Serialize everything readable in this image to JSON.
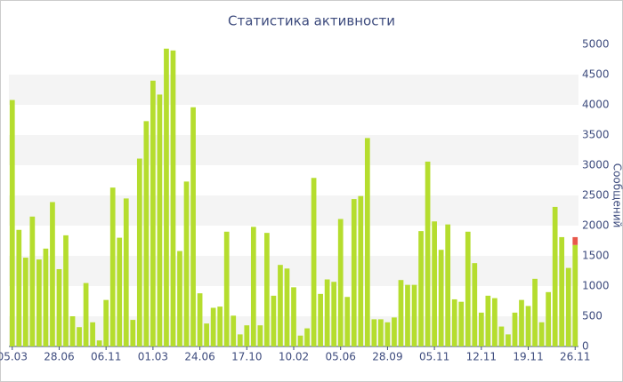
{
  "chart_data": {
    "type": "bar",
    "title": "Статистика активности",
    "y_label": "Сообщений",
    "categories": [
      "05.03",
      null,
      null,
      null,
      null,
      null,
      null,
      "28.06",
      null,
      null,
      null,
      null,
      null,
      null,
      "06.11",
      null,
      null,
      null,
      null,
      null,
      null,
      "01.03",
      null,
      null,
      null,
      null,
      null,
      null,
      "24.06",
      null,
      null,
      null,
      null,
      null,
      null,
      "17.10",
      null,
      null,
      null,
      null,
      null,
      null,
      "10.02",
      null,
      null,
      null,
      null,
      null,
      null,
      "05.06",
      null,
      null,
      null,
      null,
      null,
      null,
      "28.09",
      null,
      null,
      null,
      null,
      null,
      null,
      "05.11",
      null,
      null,
      null,
      null,
      null,
      null,
      "12.11",
      null,
      null,
      null,
      null,
      null,
      null,
      "19.11",
      null,
      null,
      null,
      null,
      null,
      null,
      "26.11"
    ],
    "series": [
      {
        "color": "#b5dd2e",
        "values": [
          4080,
          1930,
          1470,
          2150,
          1440,
          1620,
          2390,
          1280,
          1840,
          500,
          320,
          1050,
          400,
          100,
          770,
          2630,
          1800,
          2450,
          440,
          3110,
          3730,
          4400,
          4170,
          4930,
          4900,
          1580,
          2730,
          3960,
          880,
          380,
          640,
          660,
          1900,
          510,
          200,
          350,
          1980,
          350,
          1880,
          840,
          1350,
          1290,
          980,
          180,
          300,
          2790,
          870,
          1110,
          1070,
          2110,
          820,
          2440,
          2490,
          3450,
          450,
          450,
          400,
          480,
          1100,
          1020,
          1020,
          1910,
          3060,
          2070,
          1600,
          2020,
          780,
          740,
          1900,
          1380,
          560,
          840,
          800,
          330,
          200,
          560,
          770,
          670,
          1120,
          400,
          900,
          2310,
          1810,
          1300,
          1680
        ]
      },
      {
        "color": "#e8574a",
        "values": [
          null,
          null,
          null,
          null,
          null,
          null,
          null,
          null,
          null,
          null,
          null,
          null,
          null,
          null,
          null,
          null,
          null,
          null,
          null,
          null,
          null,
          null,
          null,
          null,
          null,
          null,
          null,
          null,
          null,
          null,
          null,
          null,
          null,
          null,
          null,
          null,
          null,
          null,
          null,
          null,
          null,
          null,
          null,
          null,
          null,
          null,
          null,
          null,
          null,
          null,
          null,
          null,
          null,
          null,
          null,
          null,
          null,
          null,
          null,
          null,
          null,
          null,
          null,
          null,
          null,
          null,
          null,
          null,
          null,
          null,
          null,
          null,
          null,
          null,
          null,
          null,
          null,
          null,
          null,
          null,
          null,
          null,
          null,
          null,
          130
        ]
      }
    ],
    "ylim": [
      0,
      5000
    ],
    "yticks": [
      0,
      500,
      1000,
      1500,
      2000,
      2500,
      3000,
      3500,
      4000,
      4500,
      5000
    ],
    "stacked": true,
    "grid": true
  }
}
